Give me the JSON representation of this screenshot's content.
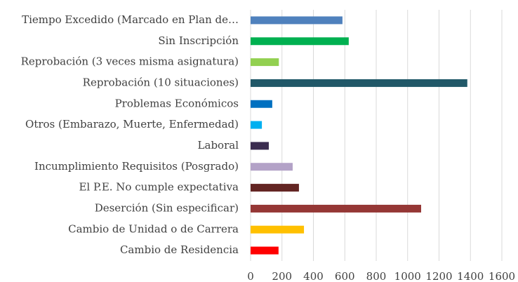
{
  "chart_data": {
    "type": "barh",
    "categories": [
      "Tiempo Excedido (Marcado en Plan de…",
      "Sin Inscripción",
      "Reprobación (3 veces misma asignatura)",
      "Reprobación (10 situaciones)",
      "Problemas Económicos",
      "Otros (Embarazo, Muerte, Enfermedad)",
      "Laboral",
      "Incumplimiento Requisitos (Posgrado)",
      "El P.E. No cumple expectativa",
      "Deserción (Sin especificar)",
      "Cambio de Unidad o de Carrera",
      "Cambio de Residencia"
    ],
    "values": [
      585,
      625,
      180,
      1380,
      138,
      72,
      116,
      268,
      308,
      1086,
      340,
      178
    ],
    "colors": [
      "#4f81bd",
      "#00b050",
      "#92d050",
      "#215868",
      "#0070c0",
      "#00b0f0",
      "#3b2c4f",
      "#b3a2c7",
      "#632523",
      "#953735",
      "#ffc000",
      "#ff0000"
    ],
    "xlim": [
      0,
      1600
    ],
    "xticks": [
      0,
      200,
      400,
      600,
      800,
      1000,
      1200,
      1400,
      1600
    ],
    "grid": true
  }
}
